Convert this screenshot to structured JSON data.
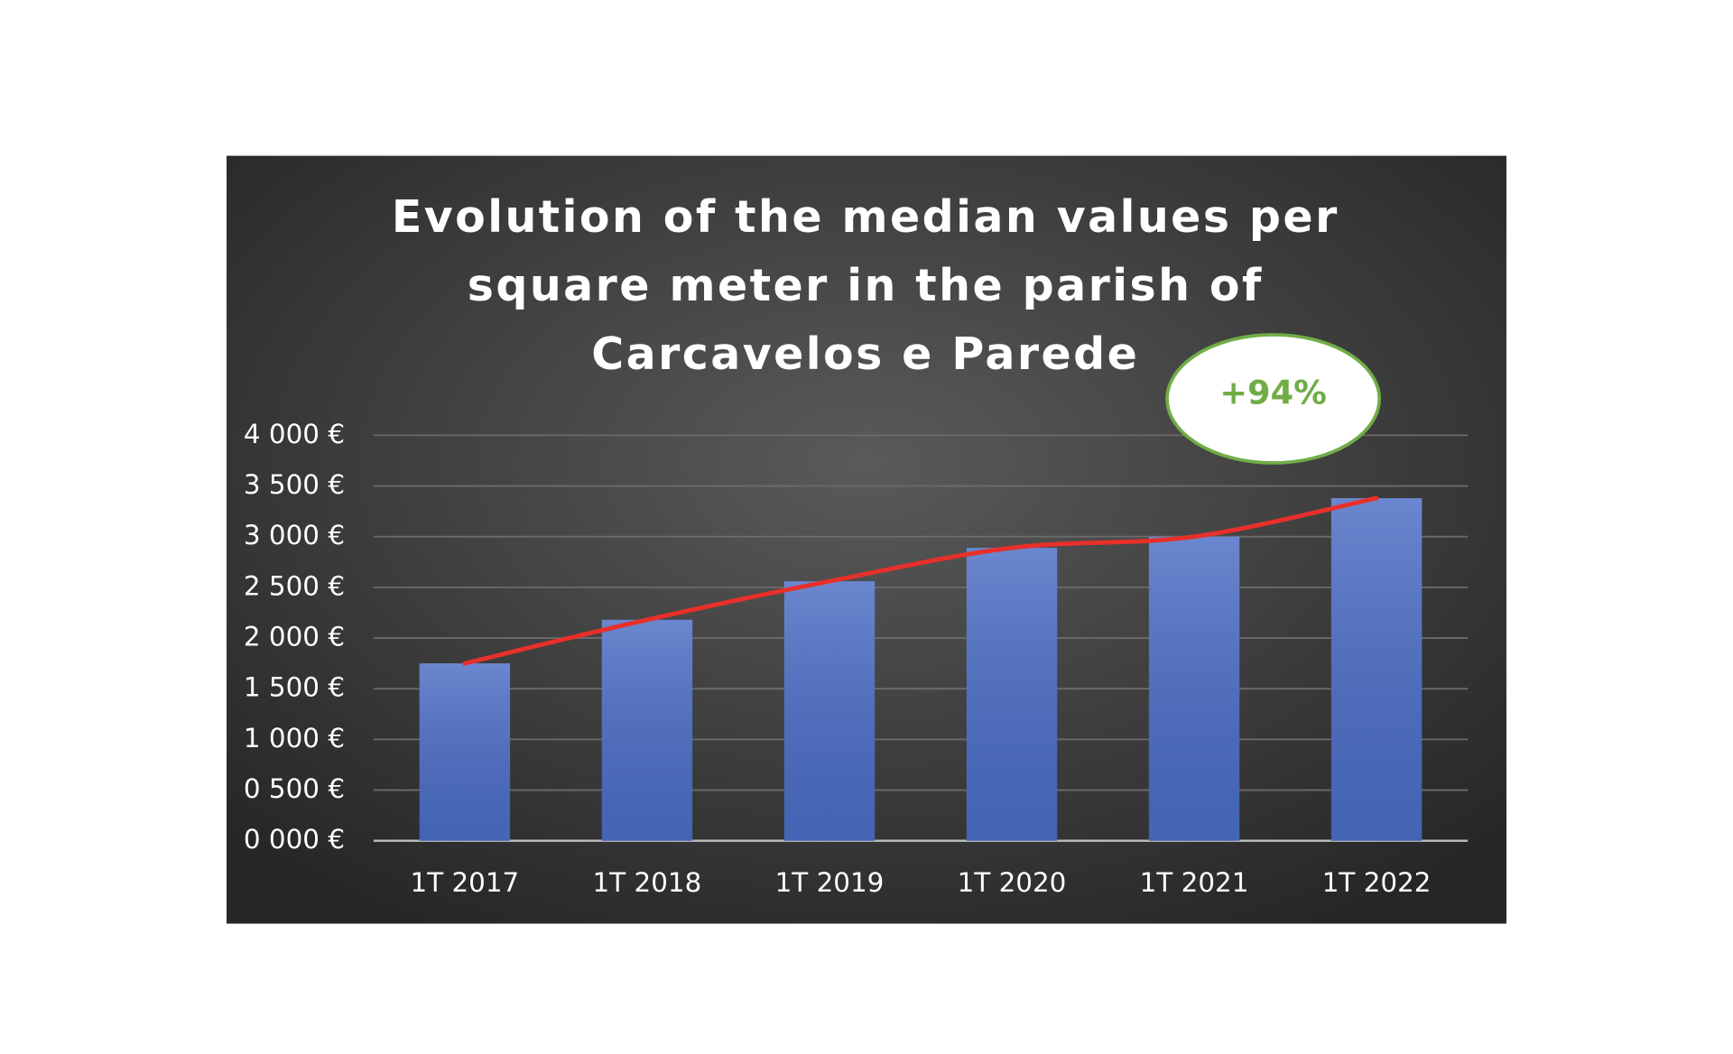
{
  "chart_data": {
    "type": "bar",
    "title": "Evolution of the median values per square meter in the parish of Carcavelos e Parede",
    "annotation": "+94%",
    "categories": [
      "1T 2017",
      "1T 2018",
      "1T 2019",
      "1T 2020",
      "1T 2021",
      "1T 2022"
    ],
    "values": [
      1750,
      2180,
      2560,
      2890,
      3000,
      3380
    ],
    "color": "#4a6cc4",
    "trend_color": "#e8302a",
    "ylim": [
      0,
      4000
    ],
    "yticks": [
      {
        "value": 0,
        "label": "0 000 €"
      },
      {
        "value": 500,
        "label": "0 500 €"
      },
      {
        "value": 1000,
        "label": "1 000 €"
      },
      {
        "value": 1500,
        "label": "1 500 €"
      },
      {
        "value": 2000,
        "label": "2 000 €"
      },
      {
        "value": 2500,
        "label": "2 500 €"
      },
      {
        "value": 3000,
        "label": "3 000 €"
      },
      {
        "value": 3500,
        "label": "3 500 €"
      },
      {
        "value": 4000,
        "label": "4 000 €"
      }
    ],
    "grid": true
  }
}
